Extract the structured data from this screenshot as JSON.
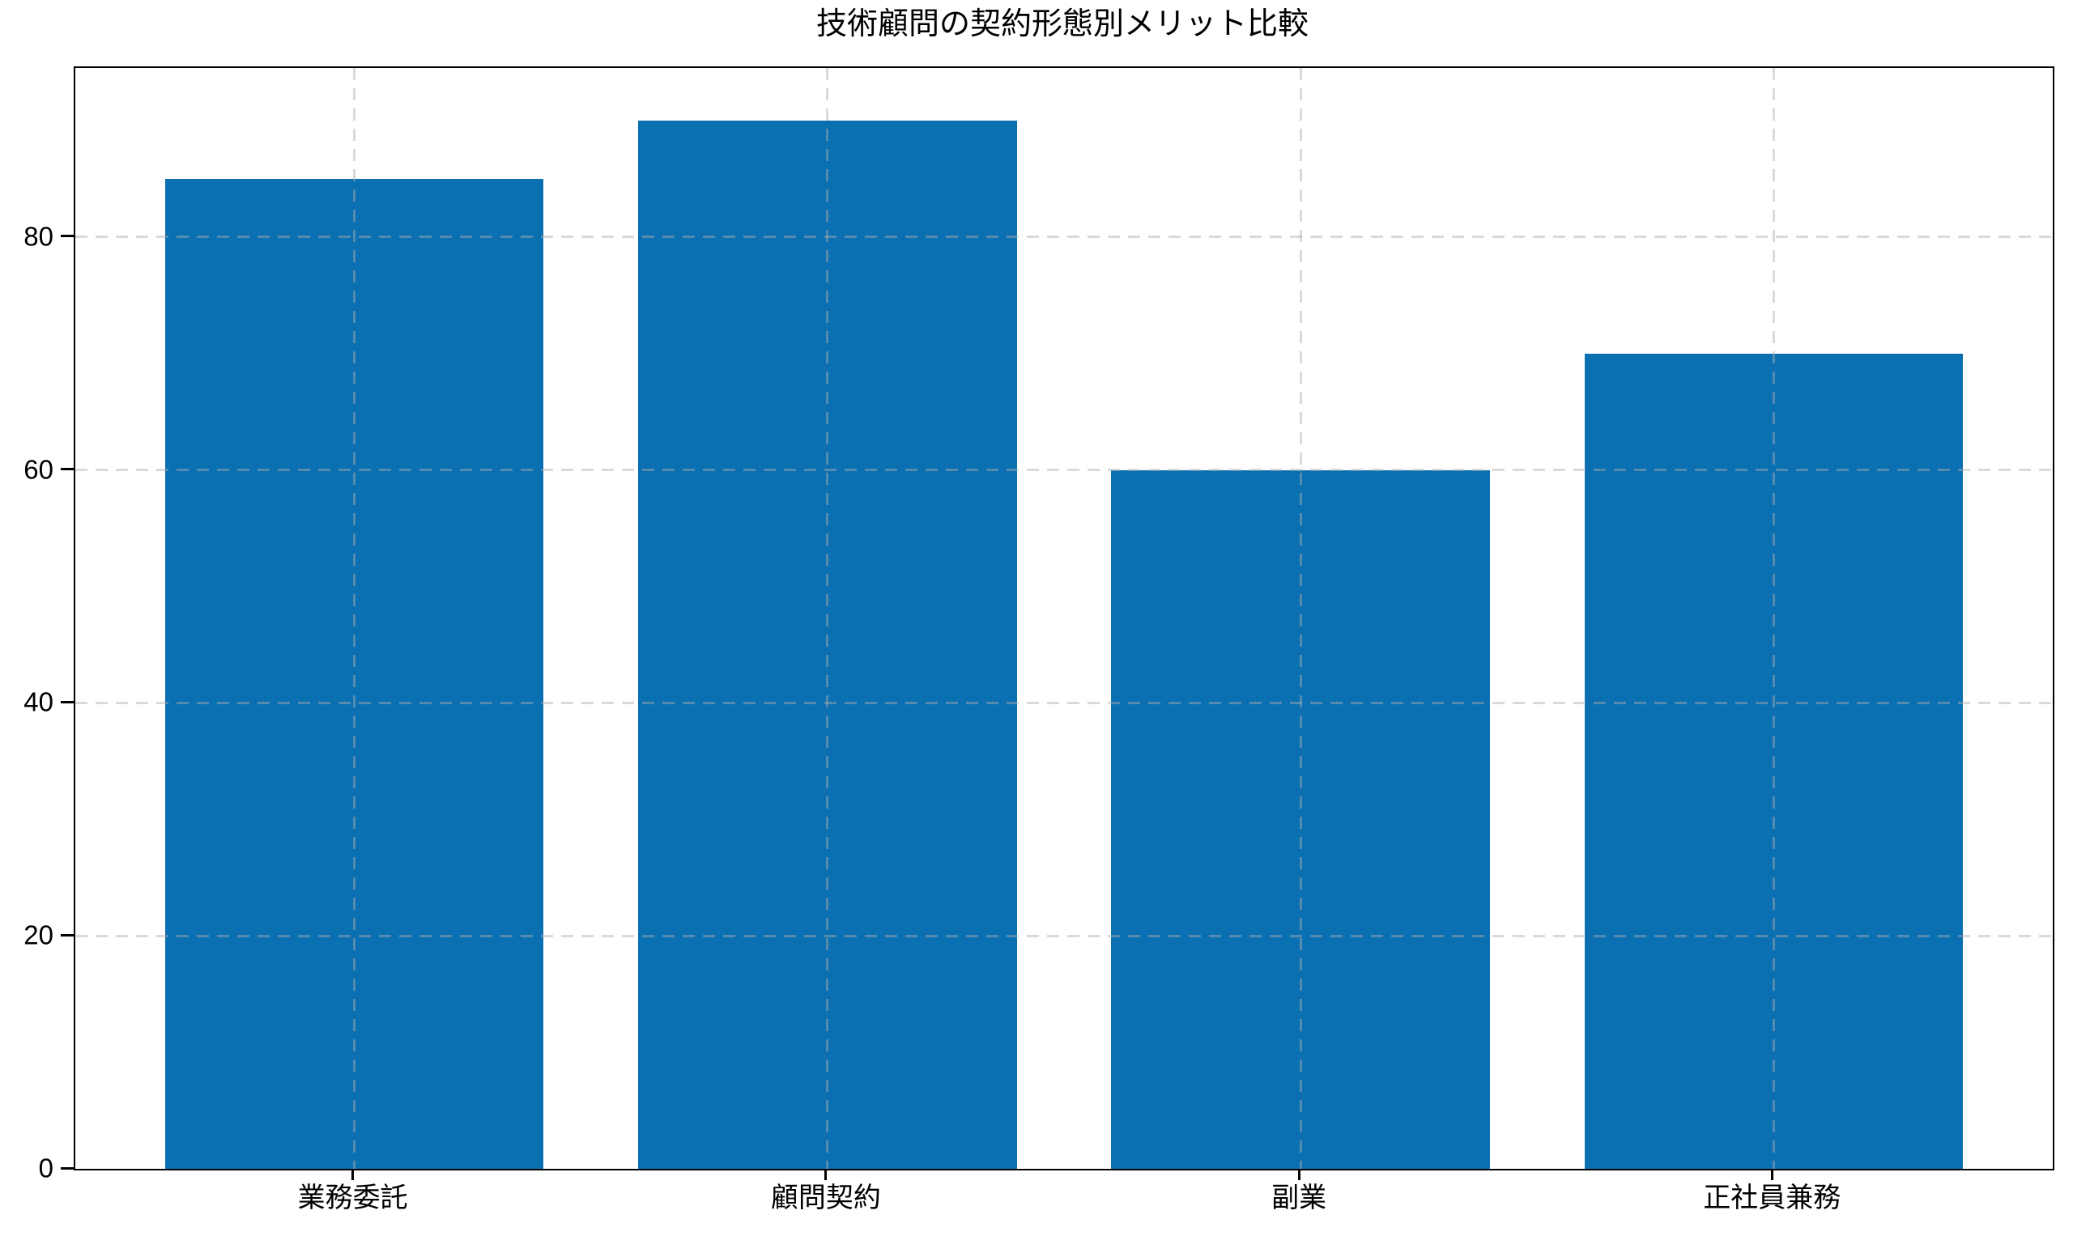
{
  "chart_data": {
    "type": "bar",
    "title": "技術顧問の契約形態別メリット比較",
    "categories": [
      "業務委託",
      "顧問契約",
      "副業",
      "正社員兼務"
    ],
    "values": [
      85,
      90,
      60,
      70
    ],
    "yticks": [
      0,
      20,
      40,
      60,
      80
    ],
    "ylim": [
      0,
      94.5
    ],
    "xlabel": "",
    "ylabel": "",
    "legend": null,
    "grid": "dashed gridlines, horizontal at y-ticks and vertical at bar centers, drawn above bars",
    "colors": {
      "bar": "#0b70b2",
      "background": "#ffffff",
      "spine": "#000000",
      "grid": "rgba(172,172,172,0.45)",
      "text": "#000000"
    }
  }
}
